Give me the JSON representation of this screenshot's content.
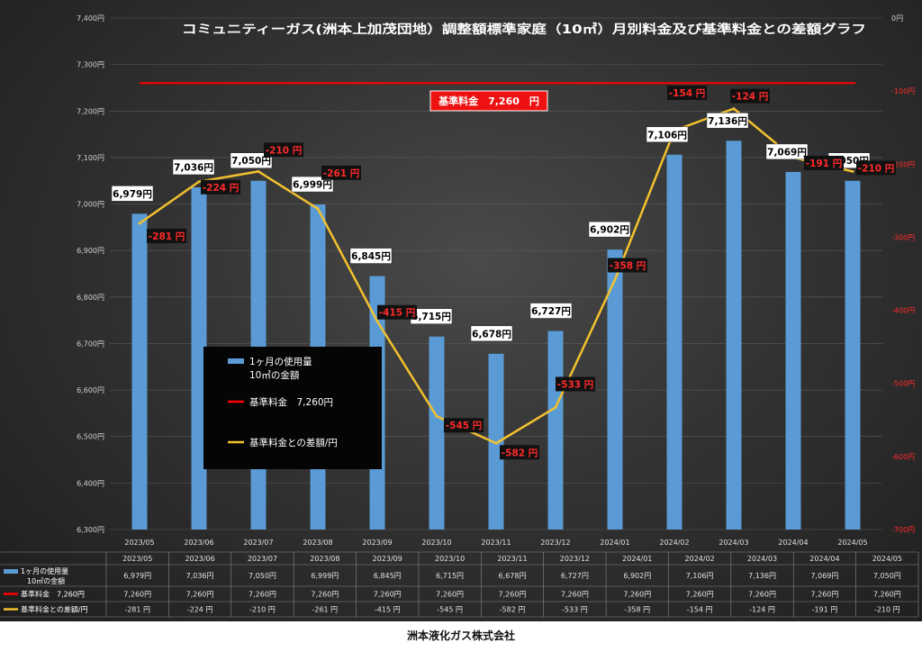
{
  "company": "洲本液化ガス株式会社",
  "chart_data": {
    "type": "bar",
    "title": "コミュニティーガス(洲本上加茂団地）調整額標準家庭（10㎥）月別料金及び基準料金との差額グラフ",
    "categories": [
      "2023/05",
      "2023/06",
      "2023/07",
      "2023/08",
      "2023/09",
      "2023/10",
      "2023/11",
      "2023/12",
      "2024/01",
      "2024/02",
      "2024/03",
      "2024/04",
      "2024/05"
    ],
    "y_left": {
      "min": 6300,
      "max": 7400,
      "step": 100,
      "tick_suffix": "円"
    },
    "y_right": {
      "min": -700,
      "max": 0,
      "step": 100,
      "tick_suffix": "円"
    },
    "series": [
      {
        "name": "1ヶ月の使用量 10㎥の金額",
        "type": "bar",
        "axis": "left",
        "color": "#5b9bd5",
        "values": [
          6979,
          7036,
          7050,
          6999,
          6845,
          6715,
          6678,
          6727,
          6902,
          7106,
          7136,
          7069,
          7050
        ],
        "labels": [
          "6,979円",
          "7,036円",
          "7,050円",
          "6,999円",
          "6,845円",
          "6,715円",
          "6,678円",
          "6,727円",
          "6,902円",
          "7,106円",
          "7,136円",
          "7,069円",
          "7,050円"
        ]
      },
      {
        "name": "基準料金　7,260円",
        "type": "line",
        "axis": "left",
        "color": "#ff0000",
        "values": [
          7260,
          7260,
          7260,
          7260,
          7260,
          7260,
          7260,
          7260,
          7260,
          7260,
          7260,
          7260,
          7260
        ]
      },
      {
        "name": "基準料金との差額/円",
        "type": "line",
        "axis": "right",
        "color": "#f2c12e",
        "values": [
          -281,
          -224,
          -210,
          -261,
          -415,
          -545,
          -582,
          -533,
          -358,
          -154,
          -124,
          -191,
          -210
        ],
        "labels": [
          "-281 円",
          "-224 円",
          "-210 円",
          "-261 円",
          "-415 円",
          "-545 円",
          "-582 円",
          "-533 円",
          "-358 円",
          "-154 円",
          "-124 円",
          "-191 円",
          "-210 円"
        ]
      }
    ],
    "annotation": "基準料金　7,260　円",
    "legend_box": [
      "1ヶ月の使用量",
      "10㎥の金額",
      "基準料金　7,260円",
      "基準料金との差額/円"
    ],
    "table": {
      "row_labels": [
        [
          "1ヶ月の使用量",
          "10㎥の金額"
        ],
        [
          "基準料金　7,260円"
        ],
        [
          "基準料金との差額/円"
        ]
      ],
      "rows": [
        [
          "6,979円",
          "7,036円",
          "7,050円",
          "6,999円",
          "6,845円",
          "6,715円",
          "6,678円",
          "6,727円",
          "6,902円",
          "7,106円",
          "7,136円",
          "7,069円",
          "7,050円"
        ],
        [
          "7,260円",
          "7,260円",
          "7,260円",
          "7,260円",
          "7,260円",
          "7,260円",
          "7,260円",
          "7,260円",
          "7,260円",
          "7,260円",
          "7,260円",
          "7,260円",
          "7,260円"
        ],
        [
          "-281 円",
          "-224 円",
          "-210 円",
          "-261 円",
          "-415 円",
          "-545 円",
          "-582 円",
          "-533 円",
          "-358 円",
          "-154 円",
          "-124 円",
          "-191 円",
          "-210 円"
        ]
      ]
    }
  }
}
